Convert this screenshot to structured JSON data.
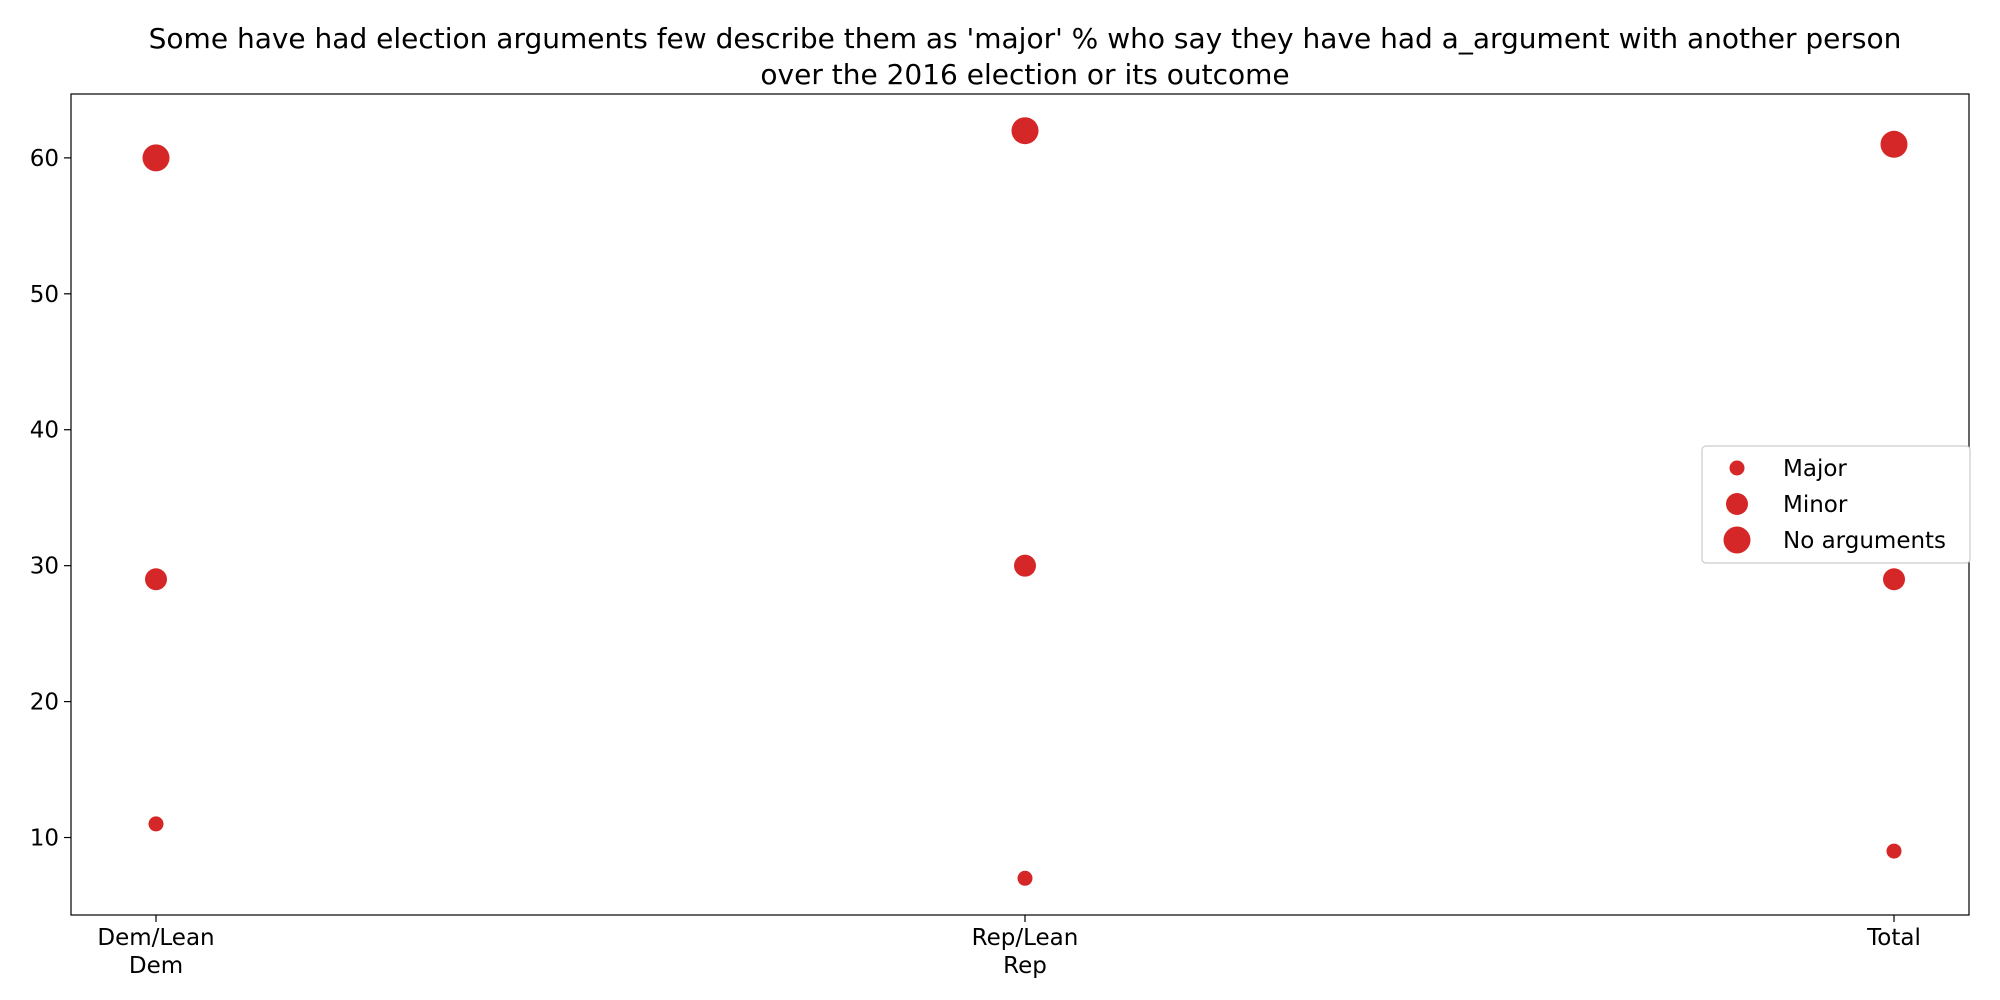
{
  "chart_data": {
    "type": "scatter",
    "title_lines": [
      "Some have had election arguments few describe them as 'major' % who say they have had a_argument with another person",
      "over the 2016 election or its outcome"
    ],
    "xlabel": "",
    "ylabel": "",
    "categories": [
      [
        "Dem/Lean",
        "Dem"
      ],
      [
        "Rep/Lean",
        "Rep"
      ],
      [
        "Total"
      ]
    ],
    "yticks": [
      10,
      20,
      30,
      40,
      50,
      60
    ],
    "ylim": [
      4.3,
      64.7
    ],
    "grid": false,
    "legend_position": "center-right",
    "marker_color": "#d62728",
    "series": [
      {
        "name": "Major",
        "values": [
          11,
          7,
          9
        ]
      },
      {
        "name": "Minor",
        "values": [
          29,
          30,
          29
        ]
      },
      {
        "name": "No arguments",
        "values": [
          60,
          62,
          61
        ]
      }
    ]
  }
}
